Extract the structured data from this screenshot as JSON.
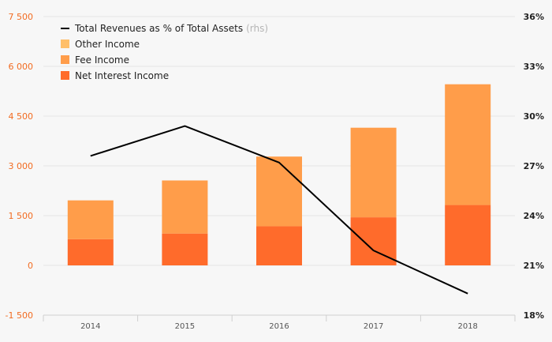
{
  "chart_data": {
    "type": "bar",
    "categories": [
      "2014",
      "2015",
      "2016",
      "2017",
      "2018"
    ],
    "series": [
      {
        "name": "Net Interest Income",
        "kind": "bar",
        "axis": "left",
        "color": "#ff6b2b",
        "values": [
          790,
          960,
          1180,
          1450,
          1820
        ]
      },
      {
        "name": "Fee Income",
        "kind": "bar",
        "axis": "left",
        "color": "#ff9d4a",
        "values": [
          1170,
          1600,
          2100,
          2700,
          3640
        ]
      },
      {
        "name": "Other Income",
        "kind": "bar",
        "axis": "left",
        "color": "#ffbf69",
        "values": [
          0,
          0,
          0,
          0,
          0
        ]
      },
      {
        "name": "Total Revenues as % of Total Assets",
        "kind": "line",
        "axis": "right",
        "color": "#000000",
        "values": [
          27.6,
          29.4,
          27.2,
          21.9,
          19.3
        ]
      }
    ],
    "y_left": {
      "min": -1500,
      "max": 7500,
      "ticks": [
        -1500,
        0,
        1500,
        3000,
        4500,
        6000,
        7500
      ],
      "tick_labels": [
        "-1 500",
        "0",
        "1 500",
        "3 000",
        "4 500",
        "6 000",
        "7 500"
      ]
    },
    "y_right": {
      "min": 18,
      "max": 36,
      "ticks": [
        18,
        21,
        24,
        27,
        30,
        33,
        36
      ],
      "tick_labels": [
        "18%",
        "21%",
        "24%",
        "27%",
        "30%",
        "33%",
        "36%"
      ]
    },
    "legend": {
      "position": "top-left",
      "items": [
        {
          "label": "Total Revenues as % of Total Assets",
          "suffix": "(rhs)",
          "symbol": "line",
          "color": "#000000"
        },
        {
          "label": "Other Income",
          "suffix": "",
          "symbol": "box",
          "color": "#ffbf69"
        },
        {
          "label": "Fee Income",
          "suffix": "",
          "symbol": "box",
          "color": "#ff9d4a"
        },
        {
          "label": "Net Interest Income",
          "suffix": "",
          "symbol": "box",
          "color": "#ff6b2b"
        }
      ]
    },
    "grid": true,
    "title": "",
    "xlabel": "",
    "ylabel": ""
  }
}
